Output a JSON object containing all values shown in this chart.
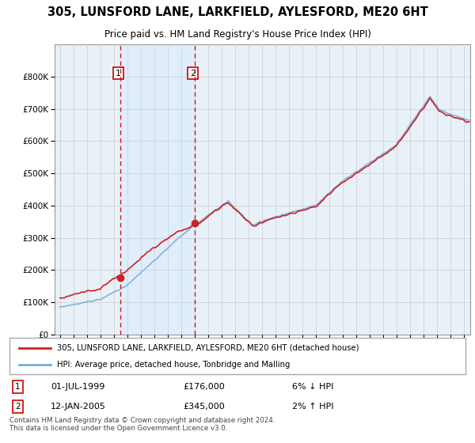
{
  "title1": "305, LUNSFORD LANE, LARKFIELD, AYLESFORD, ME20 6HT",
  "title2": "Price paid vs. HM Land Registry's House Price Index (HPI)",
  "legend_line1": "305, LUNSFORD LANE, LARKFIELD, AYLESFORD, ME20 6HT (detached house)",
  "legend_line2": "HPI: Average price, detached house, Tonbridge and Malling",
  "footnote": "Contains HM Land Registry data © Crown copyright and database right 2024.\nThis data is licensed under the Open Government Licence v3.0.",
  "sale1_date": "01-JUL-1999",
  "sale1_price": 176000,
  "sale1_pct": "6% ↓ HPI",
  "sale2_date": "12-JAN-2005",
  "sale2_price": 345000,
  "sale2_pct": "2% ↑ HPI",
  "sale1_year": 1999.5,
  "sale2_year": 2005.04,
  "hpi_color": "#7aadd4",
  "price_color": "#cc2222",
  "vline_color": "#cc0000",
  "shade_color": "#ddeeff",
  "grid_color": "#cccccc",
  "background_color": "#ffffff",
  "plot_bg_color": "#e8f0f8",
  "ylim": [
    0,
    900000
  ],
  "xlim_start": 1994.6,
  "xlim_end": 2025.5
}
